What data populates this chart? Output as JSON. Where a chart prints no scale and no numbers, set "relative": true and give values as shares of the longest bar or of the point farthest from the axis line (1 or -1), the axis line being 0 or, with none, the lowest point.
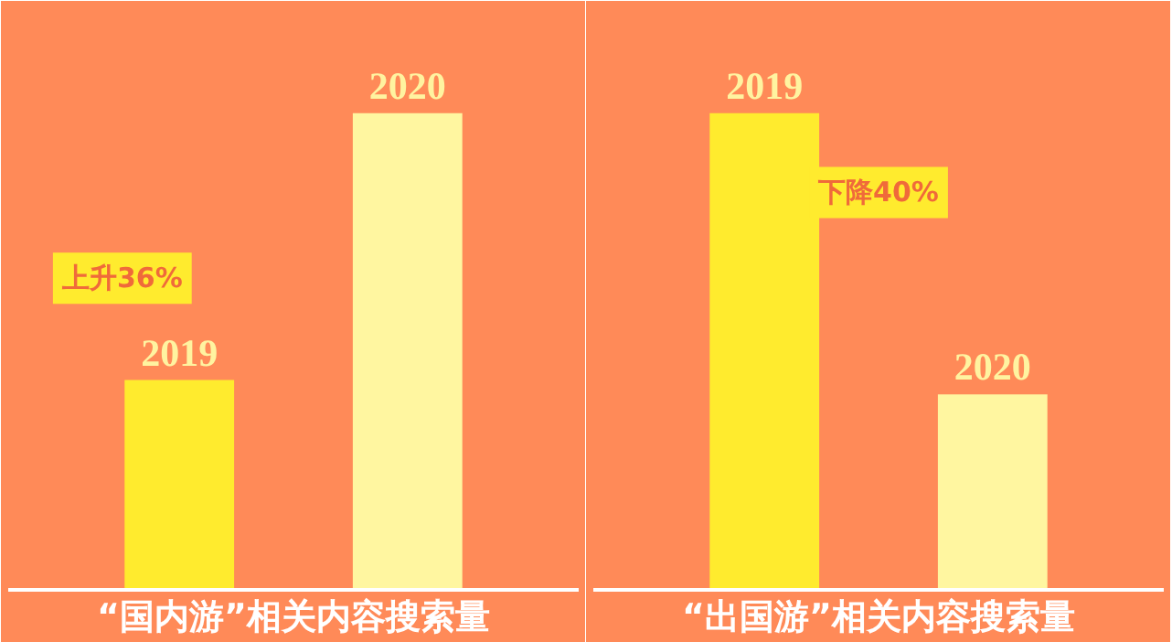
{
  "chart_data": [
    {
      "type": "bar",
      "relative": true,
      "xlabel": "“国内游”相关内容搜索量",
      "categories": [
        "2019",
        "2020"
      ],
      "values": [
        0.44,
        1
      ],
      "colors": [
        "#ffeb2e",
        "#fff6a0"
      ],
      "annotations": [
        "上升36%"
      ]
    },
    {
      "type": "bar",
      "relative": true,
      "xlabel": "“出国游”相关内容搜索量",
      "categories": [
        "2019",
        "2020"
      ],
      "values": [
        1,
        0.41
      ],
      "colors": [
        "#ffeb2e",
        "#fff6a0"
      ],
      "annotations": [
        "下降40%"
      ]
    }
  ]
}
